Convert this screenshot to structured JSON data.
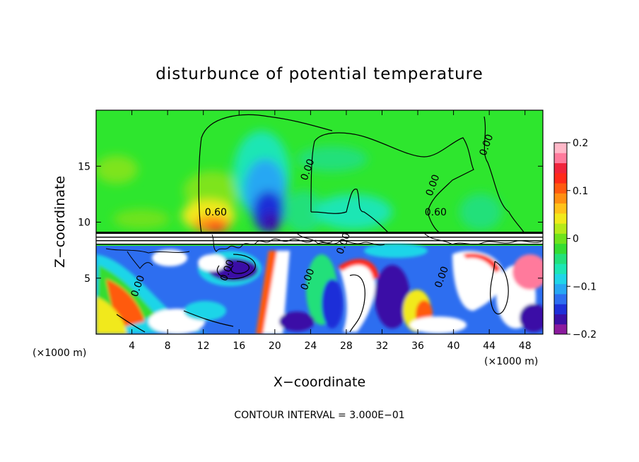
{
  "chart_data": {
    "type": "heatmap",
    "title": "disturbunce of potential temperature",
    "xlabel": "X−coordinate",
    "ylabel": "Z−coordinate",
    "x_unit_left": "(×1000 m)",
    "x_unit_right": "(×1000 m)",
    "xlim": [
      0,
      50
    ],
    "ylim": [
      0,
      20
    ],
    "x_ticks": [
      {
        "value": 4,
        "label": "4"
      },
      {
        "value": 8,
        "label": "8"
      },
      {
        "value": 12,
        "label": "12"
      },
      {
        "value": 16,
        "label": "16"
      },
      {
        "value": 20,
        "label": "20"
      },
      {
        "value": 24,
        "label": "24"
      },
      {
        "value": 28,
        "label": "28"
      },
      {
        "value": 32,
        "label": "32"
      },
      {
        "value": 36,
        "label": "36"
      },
      {
        "value": 40,
        "label": "40"
      },
      {
        "value": 44,
        "label": "44"
      },
      {
        "value": 48,
        "label": "48"
      }
    ],
    "y_ticks": [
      {
        "value": 5,
        "label": "5"
      },
      {
        "value": 10,
        "label": "10"
      },
      {
        "value": 15,
        "label": "15"
      }
    ],
    "colorbar": {
      "range": [
        -0.2,
        0.2
      ],
      "ticks": [
        {
          "value": 0.2,
          "label": "0.2"
        },
        {
          "value": 0.1,
          "label": "0.1"
        },
        {
          "value": 0,
          "label": "0"
        },
        {
          "value": -0.1,
          "label": "−0.1"
        },
        {
          "value": -0.2,
          "label": "−0.2"
        }
      ],
      "colors": [
        "#8b1a9e",
        "#3a0fa6",
        "#1e2fd8",
        "#2d6ef0",
        "#27a7f3",
        "#1fd5e8",
        "#1ce6b4",
        "#22e07a",
        "#34dc32",
        "#6ee31c",
        "#b6ea1a",
        "#f1e91c",
        "#ffc21a",
        "#ff8f12",
        "#ff5a10",
        "#ff2a1a",
        "#f0243c",
        "#ff7a9c",
        "#ffb8c8"
      ]
    },
    "contour_labels": [
      {
        "text": "0.60",
        "x": 13.4,
        "z": 10.6
      },
      {
        "text": "0.60",
        "x": 38.0,
        "z": 10.6
      },
      {
        "text": "0.00",
        "x": 24.0,
        "z": 14.6
      },
      {
        "text": "0.00",
        "x": 38.0,
        "z": 13.2
      },
      {
        "text": "0.00",
        "x": 44.0,
        "z": 16.8
      },
      {
        "text": "0.00",
        "x": 28.0,
        "z": 8.0
      },
      {
        "text": "0.00",
        "x": 15.0,
        "z": 5.6
      },
      {
        "text": "0.00",
        "x": 5.0,
        "z": 4.2
      },
      {
        "text": "0.00",
        "x": 24.0,
        "z": 4.8
      },
      {
        "text": "0.00",
        "x": 39.0,
        "z": 5.0
      }
    ],
    "footer": "CONTOUR INTERVAL =  3.000E−01"
  }
}
